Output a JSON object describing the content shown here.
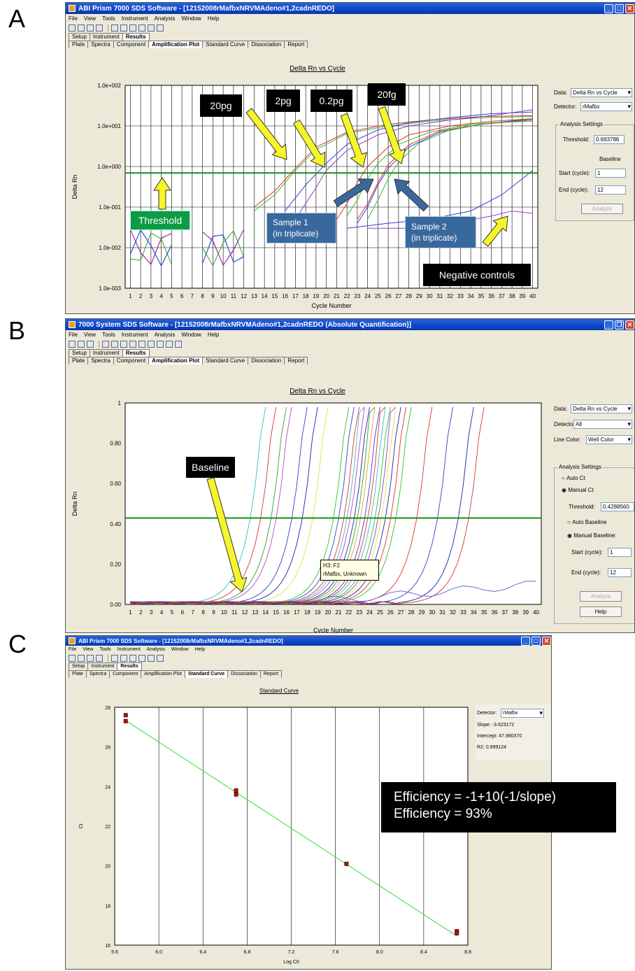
{
  "panels": {
    "a": {
      "letter": "A",
      "window_title": "ABI Prism 7000 SDS Software - [12152008rMafbxNRVMAdeno#1,2cadnREDO]",
      "menu": [
        "File",
        "View",
        "Tools",
        "Instrument",
        "Analysis",
        "Window",
        "Help"
      ],
      "tabs_top": [
        "Setup",
        "Instrument",
        "Results"
      ],
      "tabs_bottom": [
        "Plate",
        "Spectra",
        "Component",
        "Amplification Plot",
        "Standard Curve",
        "Dissociation",
        "Report"
      ],
      "active_top": "Results",
      "active_bottom": "Amplification Plot",
      "plot_title": "Delta Rn vs Cycle",
      "side": {
        "data_label": "Data:",
        "data_value": "Delta Rn vs Cycle",
        "detector_label": "Detector:",
        "detector_value": "rMafbx",
        "group_title": "Analysis Settings",
        "threshold_label": "Threshold:",
        "threshold_value": "0.693786",
        "baseline_label": "Baseline",
        "start_label": "Start (cycle):",
        "start_value": "1",
        "end_label": "End (cycle):",
        "end_value": "12",
        "analyze_label": "Analyze"
      },
      "callouts": {
        "c20pg": "20pg",
        "c2pg": "2pg",
        "c02pg": "0.2pg",
        "c20fg": "20fg",
        "threshold": "Threshold",
        "sample1_l1": "Sample 1",
        "sample1_l2": "(in triplicate)",
        "sample2_l1": "Sample 2",
        "sample2_l2": "(in triplicate)",
        "negative": "Negative controls"
      }
    },
    "b": {
      "letter": "B",
      "window_title": "7000 System SDS Software - [12152008rMafbxNRVMAdeno#1,2cadnREDO (Absolute Quantification)]",
      "menu": [
        "File",
        "View",
        "Tools",
        "Instrument",
        "Analysis",
        "Window",
        "Help"
      ],
      "tabs_top": [
        "Setup",
        "Instrument",
        "Results"
      ],
      "tabs_bottom": [
        "Plate",
        "Spectra",
        "Component",
        "Amplification Plot",
        "Standard Curve",
        "Dissociation",
        "Report"
      ],
      "active_top": "Results",
      "active_bottom": "Amplification Plot",
      "plot_title": "Delta Rn vs Cycle",
      "side": {
        "data_label": "Data:",
        "data_value": "Delta Rn vs Cycle",
        "detector_label": "Detector:",
        "detector_value": "All",
        "line_color_label": "Line Color:",
        "line_color_value": "Well Color",
        "group_title": "Analysis Settings",
        "auto_ct": "Auto Ct",
        "manual_ct": "Manual Ct",
        "threshold_label": "Threshold:",
        "threshold_value": "0.4288560",
        "auto_baseline": "Auto Baseline",
        "manual_baseline": "Manual Baseline:",
        "start_label": "Start (cycle):",
        "start_value": "1",
        "end_label": "End (cycle):",
        "end_value": "12",
        "analyze_label": "Analyze",
        "help_label": "Help"
      },
      "callouts": {
        "baseline": "Baseline"
      },
      "tooltip": {
        "line1": "H3: F2",
        "line2": "rMafbx, Unknown"
      }
    },
    "c": {
      "letter": "C",
      "window_title": "ABI Prism 7000 SDS Software - [12152008rMafbxNRVMAdeno#1,2cadnREDO]",
      "menu": [
        "File",
        "View",
        "Tools",
        "Instrument",
        "Analysis",
        "Window",
        "Help"
      ],
      "tabs_top": [
        "Setup",
        "Instrument",
        "Results"
      ],
      "tabs_bottom": [
        "Plate",
        "Spectra",
        "Component",
        "Amplification Plot",
        "Standard Curve",
        "Dissociation",
        "Report"
      ],
      "active_top": "Results",
      "active_bottom": "Standard Curve",
      "plot_title": "Standard Curve",
      "side": {
        "detector_label": "Detector:",
        "detector_value": "rMafbx",
        "slope": "Slope: -3.623172",
        "intercept": "Intercept: 47.980370",
        "r2": "R2: 0.999124"
      },
      "efficiency_l1": "Efficiency = -1+10(-1/slope)",
      "efficiency_l2": "Efficiency = 93%"
    }
  },
  "chart_data": [
    {
      "type": "line",
      "panel": "A",
      "ylabel": "Delta Rn",
      "xlabel": "Cycle Number",
      "y_scale": "log",
      "ylim": [
        0.001,
        100
      ],
      "y_ticks": [
        "1.0e-003",
        "1.0e-002",
        "1.0e-001",
        "1.0e+000",
        "1.0e+001",
        "1.0e+002"
      ],
      "x_ticks": [
        1,
        2,
        3,
        4,
        5,
        6,
        7,
        8,
        9,
        10,
        11,
        12,
        13,
        14,
        15,
        16,
        17,
        18,
        19,
        20,
        21,
        22,
        23,
        24,
        25,
        26,
        27,
        28,
        29,
        30,
        31,
        32,
        33,
        34,
        35,
        36,
        37,
        38,
        39,
        40
      ],
      "threshold": 0.693786,
      "series": [
        {
          "color": "#e03030",
          "points": [
            [
              13,
              0.1
            ],
            [
              15,
              0.25
            ],
            [
              17,
              0.9
            ],
            [
              19,
              3
            ],
            [
              22,
              7
            ],
            [
              26,
              11
            ],
            [
              30,
              14
            ],
            [
              35,
              17
            ],
            [
              40,
              18
            ]
          ]
        },
        {
          "color": "#30c030",
          "points": [
            [
              13,
              0.08
            ],
            [
              15,
              0.2
            ],
            [
              17,
              0.8
            ],
            [
              19,
              2.6
            ],
            [
              22,
              6.5
            ],
            [
              26,
              10
            ],
            [
              30,
              13
            ],
            [
              35,
              16
            ],
            [
              40,
              17
            ]
          ]
        },
        {
          "color": "#3040d0",
          "points": [
            [
              16,
              0.08
            ],
            [
              18,
              0.35
            ],
            [
              20,
              1.2
            ],
            [
              22,
              3.5
            ],
            [
              25,
              8
            ],
            [
              28,
              12
            ],
            [
              32,
              16
            ],
            [
              36,
              20
            ],
            [
              40,
              22
            ]
          ]
        },
        {
          "color": "#9040c0",
          "points": [
            [
              17,
              0.05
            ],
            [
              19,
              0.3
            ],
            [
              20,
              0.8
            ],
            [
              22,
              2.5
            ],
            [
              25,
              6
            ],
            [
              28,
              10
            ],
            [
              32,
              14
            ],
            [
              36,
              18
            ],
            [
              40,
              25
            ]
          ]
        },
        {
          "color": "#e03030",
          "points": [
            [
              21,
              0.05
            ],
            [
              22,
              0.12
            ],
            [
              23,
              0.4
            ],
            [
              24,
              1
            ],
            [
              26,
              3
            ],
            [
              28,
              6
            ],
            [
              32,
              10
            ],
            [
              36,
              13
            ],
            [
              40,
              15
            ]
          ]
        },
        {
          "color": "#30c030",
          "points": [
            [
              22,
              0.06
            ],
            [
              23,
              0.15
            ],
            [
              24,
              0.5
            ],
            [
              25,
              1.2
            ],
            [
              27,
              3.5
            ],
            [
              30,
              7
            ],
            [
              34,
              11
            ],
            [
              40,
              14
            ]
          ]
        },
        {
          "color": "#3040d0",
          "points": [
            [
              23,
              0.04
            ],
            [
              24,
              0.1
            ],
            [
              25,
              0.35
            ],
            [
              26,
              0.9
            ],
            [
              28,
              3
            ],
            [
              31,
              7
            ],
            [
              35,
              11
            ],
            [
              40,
              15
            ]
          ]
        },
        {
          "color": "#e03030",
          "points": [
            [
              23,
              0.05
            ],
            [
              24,
              0.12
            ],
            [
              25,
              0.4
            ],
            [
              26,
              1.1
            ],
            [
              28,
              3.4
            ],
            [
              31,
              7.5
            ],
            [
              35,
              11
            ],
            [
              40,
              14
            ]
          ]
        },
        {
          "color": "#30c030",
          "points": [
            [
              24,
              0.05
            ],
            [
              25,
              0.15
            ],
            [
              26,
              0.5
            ],
            [
              27,
              1.3
            ],
            [
              29,
              3.8
            ],
            [
              32,
              8
            ],
            [
              36,
              12
            ],
            [
              40,
              13
            ]
          ]
        },
        {
          "color": "#3040d0",
          "points": [
            [
              22,
              0.03
            ],
            [
              26,
              0.04
            ],
            [
              30,
              0.05
            ],
            [
              34,
              0.08
            ],
            [
              37,
              0.2
            ],
            [
              39,
              0.5
            ],
            [
              40,
              0.8
            ]
          ]
        },
        {
          "color": "#9040c0",
          "points": [
            [
              24,
              0.03
            ],
            [
              28,
              0.03
            ],
            [
              32,
              0.04
            ],
            [
              36,
              0.06
            ],
            [
              38,
              0.08
            ],
            [
              40,
              0.07
            ]
          ]
        }
      ]
    },
    {
      "type": "line",
      "panel": "B",
      "ylabel": "Delta Rn",
      "xlabel": "Cycle Number",
      "ylim": [
        0,
        1
      ],
      "y_ticks": [
        "0.00",
        "0.20",
        "0.40",
        "0.60",
        "0.80",
        "1"
      ],
      "x_ticks": [
        1,
        2,
        3,
        4,
        5,
        6,
        7,
        8,
        9,
        10,
        11,
        12,
        13,
        14,
        15,
        16,
        17,
        18,
        19,
        20,
        21,
        22,
        23,
        24,
        25,
        26,
        27,
        28,
        29,
        30,
        31,
        32,
        33,
        34,
        35,
        36,
        37,
        38,
        39,
        40
      ],
      "threshold": 0.428856,
      "rise_cycles": [
        [
          14,
          "#30c0c0"
        ],
        [
          15,
          "#e03030"
        ],
        [
          16,
          "#30a030"
        ],
        [
          16.5,
          "#c040c0"
        ],
        [
          18,
          "#3040d0"
        ],
        [
          19,
          "#2020a0"
        ],
        [
          20,
          "#e0e040"
        ],
        [
          22,
          "#30c030"
        ],
        [
          22.5,
          "#3040d0"
        ],
        [
          23,
          "#e03030"
        ],
        [
          23.3,
          "#30c0c0"
        ],
        [
          23.6,
          "#c040c0"
        ],
        [
          24,
          "#2020a0"
        ],
        [
          24.3,
          "#30a030"
        ],
        [
          24.6,
          "#e0a030"
        ],
        [
          25,
          "#3040d0"
        ],
        [
          25.3,
          "#e03030"
        ],
        [
          25.6,
          "#30c0c0"
        ],
        [
          26,
          "#30c030"
        ],
        [
          26.3,
          "#9040c0"
        ],
        [
          26.6,
          "#e0e040"
        ],
        [
          27,
          "#2020a0"
        ],
        [
          27.5,
          "#e03030"
        ],
        [
          28,
          "#30c030"
        ],
        [
          30,
          "#e03030"
        ],
        [
          32,
          "#3040d0"
        ],
        [
          34,
          "#2020a0"
        ],
        [
          35,
          "#e03030"
        ]
      ]
    },
    {
      "type": "scatter",
      "panel": "C",
      "xlabel": "Log C0",
      "ylabel": "Ct",
      "xlim": [
        5.6,
        8.8
      ],
      "ylim": [
        16,
        28
      ],
      "x_ticks": [
        5.6,
        6.0,
        6.4,
        6.8,
        7.2,
        7.6,
        8.0,
        8.4,
        8.8
      ],
      "y_ticks": [
        16,
        18,
        20,
        22,
        24,
        26,
        28
      ],
      "slope": -3.623172,
      "intercept": 47.98037,
      "r2": 0.999124,
      "x": [
        5.7,
        5.7,
        6.7,
        6.7,
        7.7,
        8.7,
        8.7
      ],
      "y": [
        27.6,
        27.3,
        23.8,
        23.6,
        20.1,
        16.7,
        16.6
      ]
    }
  ]
}
